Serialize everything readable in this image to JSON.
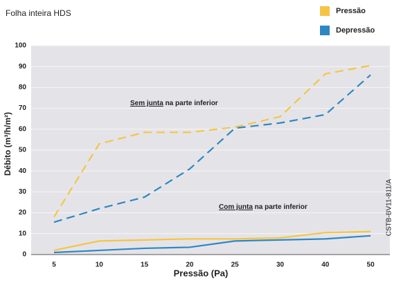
{
  "chart_data": {
    "type": "line",
    "title": "Folha inteira HDS",
    "xlabel": "Pressão (Pa)",
    "ylabel": "Débito (m³/h/m²)",
    "categories": [
      "5",
      "10",
      "15",
      "20",
      "25",
      "30",
      "40",
      "50"
    ],
    "series": [
      {
        "name": "Pressão",
        "color": "#f6c445",
        "values": [
          18,
          53,
          58.5,
          58.5,
          61,
          66,
          86.5,
          90.5
        ],
        "values_com_junta": [
          2,
          6.5,
          7,
          7.5,
          7.5,
          8,
          10.5,
          11
        ]
      },
      {
        "name": "Depressão",
        "color": "#2f86c3",
        "values": [
          15.5,
          22,
          27.5,
          41,
          60.5,
          63,
          67,
          86
        ],
        "values_com_junta": [
          1,
          2,
          3,
          3.5,
          6.5,
          7,
          7.5,
          9
        ]
      }
    ],
    "annotations": [
      {
        "underlined": "Sem junta",
        "rest": " na parte inferior"
      },
      {
        "underlined": "Com junta",
        "rest": " na parte inferior"
      }
    ],
    "source": "CSTB-BV11-811/A",
    "ylim": [
      0,
      100
    ],
    "yticks": [
      0,
      10,
      20,
      30,
      40,
      50,
      60,
      70,
      80,
      90,
      100
    ],
    "grid": true
  }
}
